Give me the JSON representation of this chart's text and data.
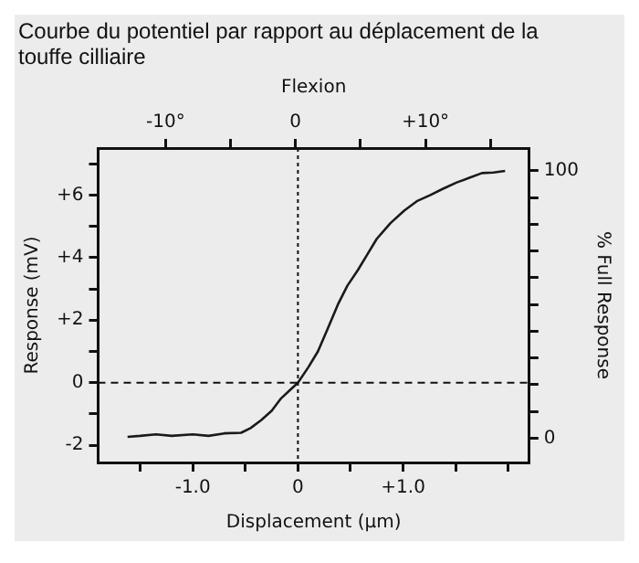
{
  "chart_data": {
    "type": "line",
    "title": "Courbe du potentiel par rapport au déplacement de la touffe cilliaire",
    "xlabel": "Displacement (µm)",
    "ylabel": "Response (mV)",
    "y2label": "% Full Response",
    "x2label": "Flexion",
    "xlim": [
      -1.9,
      2.2
    ],
    "xticks": [
      {
        "value": -1.5,
        "label": null
      },
      {
        "value": -1,
        "label": "-1.0"
      },
      {
        "value": -0.5,
        "label": null
      },
      0,
      {
        "value": 0.5,
        "label": null
      },
      {
        "value": 1,
        "label": "+1.0"
      },
      {
        "value": 1.5,
        "label": null
      },
      {
        "value": 2,
        "label": null
      }
    ],
    "x2lim": [
      -15.2,
      18
    ],
    "x2ticks": [
      {
        "value": -10,
        "label": "-10°"
      },
      {
        "value": -5,
        "label": null
      },
      0,
      {
        "value": 5,
        "label": null
      },
      {
        "value": 10,
        "label": "+10°"
      },
      {
        "value": 15,
        "label": null
      }
    ],
    "ylim": [
      -2.55,
      7.5
    ],
    "yticks": [
      {
        "value": -2,
        "label": "-2"
      },
      {
        "value": -1,
        "label": null
      },
      0,
      {
        "value": 1,
        "label": null
      },
      {
        "value": 2,
        "label": "+2"
      },
      {
        "value": 3,
        "label": null
      },
      {
        "value": 4,
        "label": "+4"
      },
      {
        "value": 5,
        "label": null
      },
      {
        "value": 6,
        "label": "+6"
      },
      {
        "value": 7,
        "label": null
      }
    ],
    "y2lim": [
      -9.1,
      108.5
    ],
    "y2ticks": [
      0,
      {
        "value": 10,
        "label": null
      },
      {
        "value": 20,
        "label": null
      },
      {
        "value": 30,
        "label": null
      },
      {
        "value": 40,
        "label": null
      },
      {
        "value": 50,
        "label": null
      },
      {
        "value": 60,
        "label": null
      },
      {
        "value": 70,
        "label": null
      },
      {
        "value": 80,
        "label": null
      },
      {
        "value": 90,
        "label": null
      },
      100
    ],
    "grid": false,
    "legend": false,
    "marker": "none",
    "line_style": "solid",
    "ref_lines": [
      {
        "axis": "x",
        "value": 0,
        "line_style": "dotted"
      },
      {
        "axis": "y",
        "value": 0,
        "line_style": "dashed"
      }
    ],
    "series": [
      {
        "color": "#1a1a1a",
        "x": [
          -1.62,
          -1.5,
          -1.35,
          -1.2,
          -1.0,
          -0.85,
          -0.7,
          -0.54,
          -0.45,
          -0.35,
          -0.25,
          -0.16,
          -0.08,
          0,
          0.1,
          0.19,
          0.28,
          0.38,
          0.47,
          0.57,
          0.66,
          0.75,
          0.88,
          1.01,
          1.13,
          1.26,
          1.38,
          1.51,
          1.63,
          1.75,
          1.86,
          1.97
        ],
        "values": [
          -1.73,
          -1.7,
          -1.65,
          -1.7,
          -1.65,
          -1.7,
          -1.62,
          -1.6,
          -1.45,
          -1.2,
          -0.9,
          -0.5,
          -0.25,
          0,
          0.5,
          1.0,
          1.7,
          2.5,
          3.1,
          3.6,
          4.1,
          4.6,
          5.1,
          5.5,
          5.8,
          6.0,
          6.2,
          6.4,
          6.55,
          6.7,
          6.72,
          6.77
        ]
      }
    ]
  }
}
